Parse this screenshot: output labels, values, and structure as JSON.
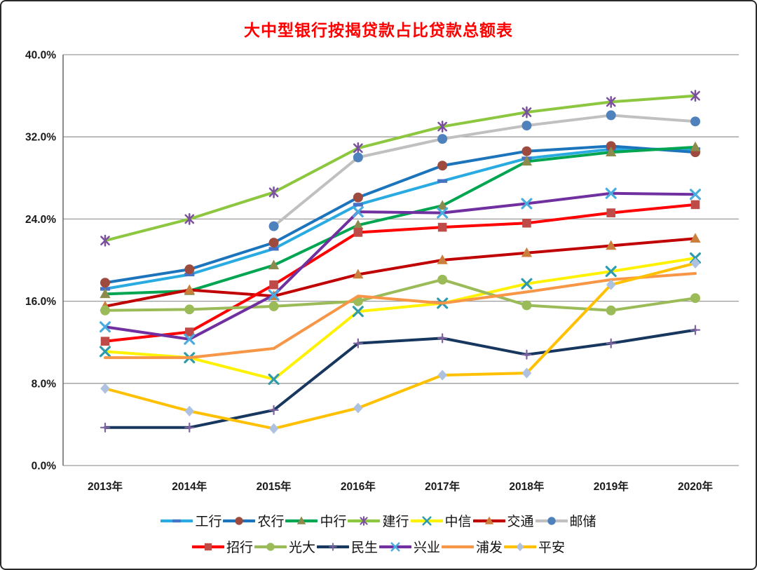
{
  "chart_data": {
    "type": "line",
    "title": "大中型银行按揭贷款占比贷款总额表",
    "title_color": "#FF0000",
    "x": [
      "2013年",
      "2014年",
      "2015年",
      "2016年",
      "2017年",
      "2018年",
      "2019年",
      "2020年"
    ],
    "y_tick_labels_top_to_bottom": [
      "40.0%",
      "32.0%",
      "24.0%",
      "16.0%",
      "8.0%",
      "0.0%"
    ],
    "ylim": [
      0,
      40
    ],
    "y_step": 8,
    "unit": "%",
    "grid": true,
    "legend_position": "bottom",
    "legend_rows": [
      [
        "工行",
        "农行",
        "中行",
        "建行",
        "中信",
        "交通",
        "邮储"
      ],
      [
        "招行",
        "光大",
        "民生",
        "兴业",
        "浦发",
        "平安"
      ]
    ],
    "series": [
      {
        "id": "icbc",
        "name": "工行",
        "color": "#29ABE2",
        "marker": "dash",
        "marker_color": "#4472C4",
        "values": [
          17.2,
          18.6,
          21.1,
          25.4,
          27.7,
          29.9,
          30.8,
          30.8
        ]
      },
      {
        "id": "abc",
        "name": "农行",
        "color": "#1C75BC",
        "marker": "circle",
        "marker_color": "#9E4B3F",
        "values": [
          17.8,
          19.1,
          21.7,
          26.1,
          29.2,
          30.6,
          31.1,
          30.5
        ]
      },
      {
        "id": "boc",
        "name": "中行",
        "color": "#00A551",
        "marker": "triangle",
        "marker_color": "#8C8A4D",
        "values": [
          16.7,
          17.0,
          19.5,
          23.4,
          25.3,
          29.6,
          30.5,
          31.0
        ]
      },
      {
        "id": "ccb",
        "name": "建行",
        "color": "#8DC63F",
        "marker": "asterisk",
        "marker_color": "#7B519D",
        "values": [
          21.9,
          24.0,
          26.6,
          30.9,
          33.0,
          34.4,
          35.4,
          36.0
        ]
      },
      {
        "id": "citic",
        "name": "中信",
        "color": "#FFF200",
        "marker": "x",
        "marker_color": "#2E9BAD",
        "values": [
          11.1,
          10.5,
          8.4,
          15.0,
          15.8,
          17.7,
          18.9,
          20.2
        ]
      },
      {
        "id": "bocom",
        "name": "交通",
        "color": "#C00000",
        "marker": "triangle",
        "marker_color": "#CB7F3C",
        "values": [
          15.5,
          17.1,
          16.5,
          18.6,
          20.0,
          20.7,
          21.4,
          22.1
        ]
      },
      {
        "id": "psbc",
        "name": "邮储",
        "color": "#C0C0C0",
        "marker": "circle",
        "marker_color": "#4F81BD",
        "values": [
          null,
          null,
          23.3,
          30.0,
          31.8,
          33.1,
          34.1,
          33.5
        ]
      },
      {
        "id": "cmb",
        "name": "招行",
        "color": "#FF0000",
        "marker": "square",
        "marker_color": "#BE4B48",
        "values": [
          12.1,
          13.0,
          17.6,
          22.7,
          23.2,
          23.6,
          24.6,
          25.4
        ]
      },
      {
        "id": "ceb",
        "name": "光大",
        "color": "#9BBB59",
        "marker": "circle",
        "marker_color": "#9BBB59",
        "values": [
          15.1,
          15.2,
          15.5,
          16.0,
          18.1,
          15.6,
          15.1,
          16.3
        ]
      },
      {
        "id": "minsheng",
        "name": "民生",
        "color": "#17375E",
        "marker": "plus",
        "marker_color": "#8064A2",
        "values": [
          3.7,
          3.7,
          5.4,
          11.9,
          12.4,
          10.8,
          11.9,
          13.2
        ]
      },
      {
        "id": "cib",
        "name": "兴业",
        "color": "#7030A0",
        "marker": "x",
        "marker_color": "#4AACDE",
        "values": [
          13.5,
          12.3,
          16.6,
          24.7,
          24.6,
          25.5,
          26.5,
          26.4
        ]
      },
      {
        "id": "spdb",
        "name": "浦发",
        "color": "#F79646",
        "marker": "none",
        "marker_color": "#F79646",
        "values": [
          10.5,
          10.5,
          11.4,
          16.5,
          15.8,
          16.9,
          18.1,
          18.7
        ]
      },
      {
        "id": "pingan",
        "name": "平安",
        "color": "#FFC000",
        "marker": "diamond",
        "marker_color": "#AEC2E0",
        "values": [
          7.5,
          5.3,
          3.6,
          5.6,
          8.8,
          9.0,
          17.6,
          19.7
        ]
      }
    ]
  }
}
